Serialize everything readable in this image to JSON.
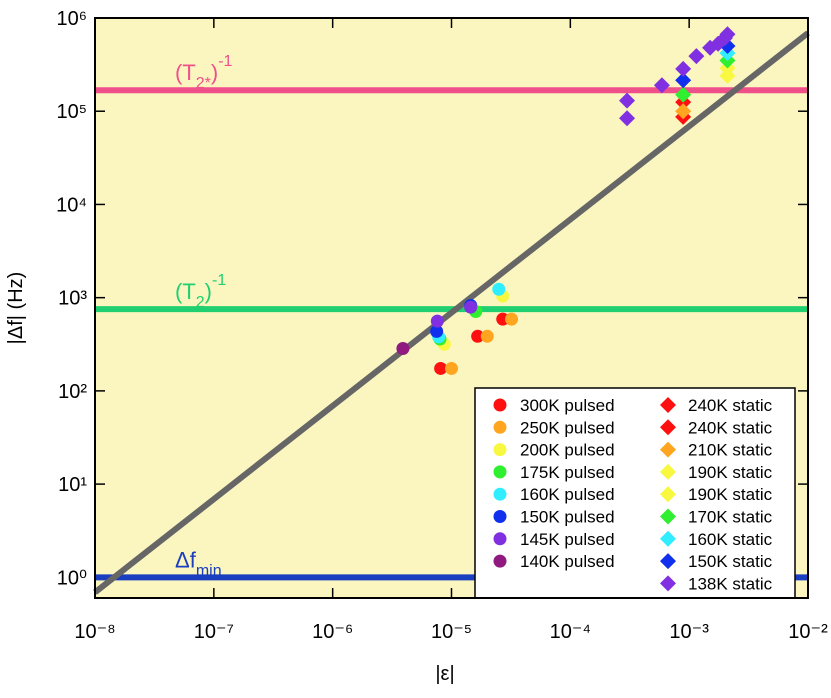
{
  "chart_data": {
    "type": "scatter",
    "xlabel": "|ε|",
    "ylabel": "|Δf| (Hz)",
    "xscale": "log",
    "yscale": "log",
    "xlim": [
      1e-08,
      0.01
    ],
    "ylim": [
      0.6,
      1000000
    ],
    "xticks": [
      {
        "value": 1e-08,
        "label": "10⁻⁸"
      },
      {
        "value": 1e-07,
        "label": "10⁻⁷"
      },
      {
        "value": 1e-06,
        "label": "10⁻⁶"
      },
      {
        "value": 1e-05,
        "label": "10⁻⁵"
      },
      {
        "value": 0.0001,
        "label": "10⁻⁴"
      },
      {
        "value": 0.001,
        "label": "10⁻³"
      },
      {
        "value": 0.01,
        "label": "10⁻²"
      }
    ],
    "yticks": [
      {
        "value": 1,
        "label": "10⁰"
      },
      {
        "value": 10,
        "label": "10¹"
      },
      {
        "value": 100,
        "label": "10²"
      },
      {
        "value": 1000,
        "label": "10³"
      },
      {
        "value": 10000,
        "label": "10⁴"
      },
      {
        "value": 100000,
        "label": "10⁵"
      },
      {
        "value": 1000000,
        "label": "10⁶"
      }
    ],
    "background": "#fbf6c0",
    "legend": "lower right",
    "hlines": [
      {
        "value": 168000,
        "color": "#f0508a",
        "label": [
          {
            "text": "(T"
          },
          {
            "text": "2*",
            "shift": "sub"
          },
          {
            "text": ")"
          },
          {
            "text": "-1",
            "shift": "super"
          }
        ]
      },
      {
        "value": 754,
        "color": "#20d070",
        "label": [
          {
            "text": "(T"
          },
          {
            "text": "2",
            "shift": "sub"
          },
          {
            "text": ")"
          },
          {
            "text": "-1",
            "shift": "super"
          }
        ]
      },
      {
        "value": 1,
        "color": "#1a3ec0",
        "label": [
          {
            "text": "Δf"
          },
          {
            "text": "min",
            "shift": "sub"
          }
        ]
      }
    ],
    "fit": {
      "color": "#666666",
      "x": [
        1e-08,
        0.01
      ],
      "values": [
        0.69,
        690000
      ]
    },
    "series": [
      {
        "name": "300K pulsed",
        "color": "#ff1010",
        "marker": "circle",
        "x": [
          8.1e-06,
          1.66e-05,
          2.7e-05
        ],
        "values": [
          174,
          385,
          588
        ]
      },
      {
        "name": "250K pulsed",
        "color": "#ffa520",
        "marker": "circle",
        "x": [
          1e-05,
          2e-05,
          3.2e-05
        ],
        "values": [
          174,
          385,
          588
        ]
      },
      {
        "name": "200K pulsed",
        "color": "#f8f840",
        "marker": "circle",
        "x": [
          8.7e-06,
          2.7e-05
        ],
        "values": [
          316,
          1040
        ]
      },
      {
        "name": "175K pulsed",
        "color": "#30ee30",
        "marker": "circle",
        "x": [
          8e-06,
          1.6e-05
        ],
        "values": [
          360,
          710
        ]
      },
      {
        "name": "160K pulsed",
        "color": "#30eeff",
        "marker": "circle",
        "x": [
          7.8e-06,
          2.5e-05
        ],
        "values": [
          380,
          1230
        ]
      },
      {
        "name": "150K pulsed",
        "color": "#1030ee",
        "marker": "circle",
        "x": [
          7.5e-06,
          1.45e-05
        ],
        "values": [
          435,
          825
        ]
      },
      {
        "name": "145K pulsed",
        "color": "#8030e0",
        "marker": "circle",
        "x": [
          7.6e-06,
          1.45e-05
        ],
        "values": [
          560,
          790
        ]
      },
      {
        "name": "140K pulsed",
        "color": "#901a80",
        "marker": "circle",
        "x": [
          3.9e-06
        ],
        "values": [
          285
        ]
      },
      {
        "name": "240K static",
        "color": "#ff1010",
        "marker": "diamond",
        "x": [
          0.00089
        ],
        "values": [
          125000
        ]
      },
      {
        "name": "240K static",
        "color": "#ff1010",
        "marker": "diamond",
        "x": [
          0.00089
        ],
        "values": [
          87000
        ]
      },
      {
        "name": "210K static",
        "color": "#ffa520",
        "marker": "diamond",
        "x": [
          0.00089
        ],
        "values": [
          100000
        ]
      },
      {
        "name": "190K static",
        "color": "#f8f840",
        "marker": "diamond",
        "x": [
          0.0021
        ],
        "values": [
          240000
        ]
      },
      {
        "name": "190K static",
        "color": "#f8f840",
        "marker": "diamond",
        "x": [
          0.0021
        ],
        "values": [
          290000
        ]
      },
      {
        "name": "170K static",
        "color": "#30ee30",
        "marker": "diamond",
        "x": [
          0.00089,
          0.0021
        ],
        "values": [
          150000,
          350000
        ]
      },
      {
        "name": "160K static",
        "color": "#30eeff",
        "marker": "diamond",
        "x": [
          0.0021
        ],
        "values": [
          420000
        ]
      },
      {
        "name": "150K static",
        "color": "#1030ee",
        "marker": "diamond",
        "x": [
          0.00089,
          0.0021
        ],
        "values": [
          215000,
          500000
        ]
      },
      {
        "name": "138K static",
        "color": "#8030e0",
        "marker": "diamond",
        "x": [
          0.0003,
          0.0003,
          0.00059,
          0.00089,
          0.00115,
          0.0015,
          0.00175,
          0.002,
          0.0021
        ],
        "values": [
          84000,
          130000,
          190000,
          285000,
          390000,
          480000,
          530000,
          610000,
          670000
        ]
      }
    ]
  }
}
